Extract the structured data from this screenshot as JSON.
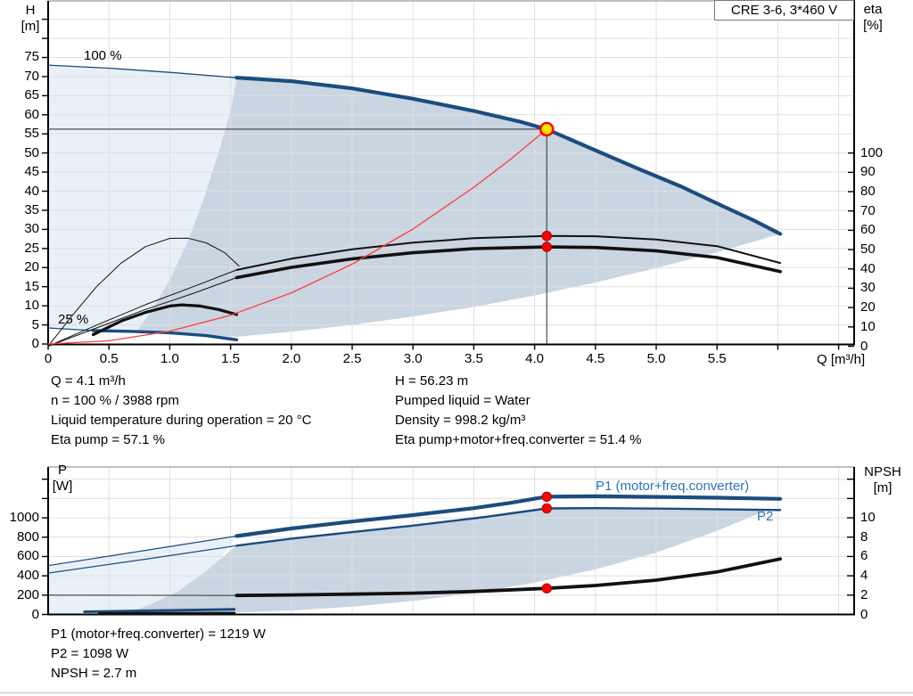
{
  "title_box_label": "CRE 3-6, 3*460 V",
  "colors": {
    "navy": "#1b4d7e",
    "black_curve": "#111111",
    "red_curve": "#ff3c3c",
    "red_dot": "#ff0000",
    "red_dot_edge": "#b00000",
    "yellow_fill": "#f7e400",
    "yellow_ring": "#ff0000",
    "fill_light": "#e9f0f8",
    "fill_dark": "#cad5e2",
    "grid": "#dfdfdf",
    "frame": "#9b9b9b",
    "axis": "#000000",
    "crosshair": "#3c3c3c",
    "blue_label": "#2e74b6"
  },
  "duty_point": {
    "q": 4.1,
    "h": 56.23,
    "eta_pump": 57.1,
    "eta_total": 51.4,
    "p1": 1219,
    "p2": 1098,
    "npsh": 2.7
  },
  "top_chart": {
    "h_axis": {
      "title_line1": "H",
      "title_line2": "[m]",
      "ticks": [
        0,
        5,
        10,
        15,
        20,
        25,
        30,
        35,
        40,
        45,
        50,
        55,
        60,
        65,
        70,
        75
      ],
      "unlabeled_ticks": [
        80,
        85
      ]
    },
    "eta_axis": {
      "title_line1": "eta",
      "title_line2": "[%]",
      "ticks": [
        0,
        10,
        20,
        30,
        40,
        50,
        60,
        70,
        80,
        90,
        100
      ]
    },
    "x_axis": {
      "tick_values": [
        0,
        0.5,
        1,
        1.5,
        2,
        2.5,
        3,
        3.5,
        4,
        4.5,
        5,
        5.5
      ],
      "tick_labels": [
        "0",
        "0.5",
        "1.0",
        "1.5",
        "2.0",
        "2.5",
        "3.0",
        "3.5",
        "4.0",
        "4.5",
        "5.0",
        "5.5"
      ],
      "unlabeled_ticks": [
        6.0,
        6.5
      ],
      "title": "Q [m³/h]"
    },
    "speed_label_max": "100 %",
    "speed_label_min": "25 %"
  },
  "bottom_chart": {
    "p_axis": {
      "title_line1": "P",
      "title_line2": "[W]",
      "ticks": [
        0,
        200,
        400,
        600,
        800,
        1000
      ],
      "unlabeled_ticks": [
        1200,
        1400
      ]
    },
    "npsh_axis": {
      "title_line1": "NPSH",
      "title_line2": "[m]",
      "ticks": [
        0,
        2,
        4,
        6,
        8,
        10
      ],
      "unlabeled_ticks": [
        12,
        14
      ]
    },
    "curve_label_p1": "P1 (motor+freq.converter)",
    "curve_label_p2": "P2"
  },
  "info_top": {
    "left": [
      "Q = 4.1 m³/h",
      "n = 100 % / 3988 rpm",
      "Liquid temperature during operation = 20 °C",
      "Eta pump = 57.1 %"
    ],
    "right": [
      "H = 56.23 m",
      "Pumped liquid = Water",
      "Density = 998.2 kg/m³",
      "Eta pump+motor+freq.converter = 51.4 %"
    ]
  },
  "info_bottom": {
    "lines": [
      "P1 (motor+freq.converter) = 1219 W",
      "P2 = 1098 W",
      "NPSH = 2.7 m"
    ]
  },
  "chart_data": {
    "type": "line",
    "title": "CRE 3-6, 3*460 V pump performance curves",
    "x_axis": {
      "label": "Q [m³/h]",
      "range": [
        0,
        6.63
      ],
      "grid_step": 0.5
    },
    "top_axes": {
      "H": {
        "label": "H [m]",
        "range": [
          0,
          90
        ]
      },
      "eta": {
        "label": "eta [%]",
        "range": [
          0,
          100
        ]
      }
    },
    "bottom_axes": {
      "P": {
        "label": "P [W]",
        "range": [
          0,
          1520
        ]
      },
      "NPSH": {
        "label": "NPSH [m]",
        "range": [
          0,
          15
        ]
      }
    },
    "regions": [
      {
        "name": "envelope-light-top",
        "chart": "top",
        "axis": "H",
        "color": "fill_light",
        "points": [
          [
            0,
            4.2
          ],
          [
            0,
            73
          ],
          [
            0.5,
            72.2
          ],
          [
            1.0,
            71.1
          ],
          [
            1.55,
            69.7
          ],
          [
            1.5,
            61
          ],
          [
            1.41,
            51
          ],
          [
            1.29,
            39
          ],
          [
            1.15,
            27
          ],
          [
            1.0,
            16.8
          ],
          [
            0.86,
            9.3
          ],
          [
            0.73,
            3.4
          ],
          [
            0.55,
            3.4
          ],
          [
            0.37,
            3.5
          ],
          [
            0,
            4.2
          ]
        ]
      },
      {
        "name": "envelope-dark-top",
        "chart": "top",
        "axis": "H",
        "color": "fill_dark",
        "points": [
          [
            1.55,
            69.7
          ],
          [
            2,
            68.8
          ],
          [
            2.5,
            66.9
          ],
          [
            3,
            64.2
          ],
          [
            3.5,
            61.0
          ],
          [
            3.88,
            58.2
          ],
          [
            4.1,
            56.23
          ],
          [
            4.5,
            50.7
          ],
          [
            4.85,
            45.9
          ],
          [
            5.2,
            41.3
          ],
          [
            5.56,
            35.9
          ],
          [
            5.8,
            32.4
          ],
          [
            6.02,
            28.8
          ],
          [
            5.5,
            24
          ],
          [
            5.0,
            19.9
          ],
          [
            4.5,
            16.1
          ],
          [
            4.0,
            12.7
          ],
          [
            3.5,
            9.7
          ],
          [
            3.0,
            7.2
          ],
          [
            2.5,
            5.0
          ],
          [
            2.0,
            3.2
          ],
          [
            1.55,
            1.9
          ],
          [
            1.3,
            2.2
          ],
          [
            1.0,
            2.95
          ],
          [
            0.73,
            3.35
          ],
          [
            0.86,
            9.3
          ],
          [
            1.0,
            16.8
          ],
          [
            1.15,
            27
          ],
          [
            1.29,
            39
          ],
          [
            1.41,
            51
          ],
          [
            1.5,
            61
          ]
        ]
      },
      {
        "name": "envelope-light-bottom",
        "chart": "bottom",
        "axis": "P",
        "color": "fill_light",
        "points": [
          [
            0,
            0
          ],
          [
            0,
            505
          ],
          [
            0.8,
            663
          ],
          [
            1.55,
            812
          ],
          [
            1.42,
            580
          ],
          [
            1.29,
            440
          ],
          [
            1.07,
            240
          ],
          [
            0.85,
            110
          ],
          [
            0.62,
            0
          ]
        ]
      },
      {
        "name": "envelope-dark-bottom",
        "chart": "bottom",
        "axis": "P",
        "color": "fill_dark",
        "points": [
          [
            1.55,
            712
          ],
          [
            2,
            785
          ],
          [
            2.5,
            852
          ],
          [
            3,
            920
          ],
          [
            3.6,
            1010
          ],
          [
            4.1,
            1098
          ],
          [
            4.5,
            1100
          ],
          [
            5,
            1096
          ],
          [
            5.5,
            1089
          ],
          [
            5.92,
            1084
          ],
          [
            5.5,
            865
          ],
          [
            5,
            640
          ],
          [
            4.5,
            467
          ],
          [
            4,
            328
          ],
          [
            3.5,
            220
          ],
          [
            3,
            139
          ],
          [
            2.5,
            80
          ],
          [
            2,
            41
          ],
          [
            1.55,
            19
          ],
          [
            1.2,
            9
          ],
          [
            0.9,
            4
          ],
          [
            0.62,
            0
          ],
          [
            0.85,
            110
          ],
          [
            1.07,
            240
          ],
          [
            1.29,
            440
          ],
          [
            1.42,
            580
          ]
        ]
      }
    ],
    "series": [
      {
        "name": "head-100pct-low-flow",
        "chart": "top",
        "axis": "H",
        "color": "navy",
        "width": 1.3,
        "points": [
          [
            0,
            73
          ],
          [
            0.5,
            72.2
          ],
          [
            1.0,
            71.1
          ],
          [
            1.55,
            69.7
          ]
        ]
      },
      {
        "name": "head-100pct",
        "chart": "top",
        "axis": "H",
        "color": "navy",
        "width": 4.2,
        "points": [
          [
            1.55,
            69.7
          ],
          [
            2,
            68.8
          ],
          [
            2.5,
            66.9
          ],
          [
            3,
            64.2
          ],
          [
            3.5,
            61.0
          ],
          [
            3.88,
            58.2
          ],
          [
            4.1,
            56.23
          ],
          [
            4.5,
            50.7
          ],
          [
            4.85,
            45.9
          ],
          [
            5.2,
            41.3
          ],
          [
            5.56,
            35.9
          ],
          [
            5.8,
            32.4
          ],
          [
            6.02,
            28.8
          ]
        ]
      },
      {
        "name": "head-25pct-low-flow",
        "chart": "top",
        "axis": "H",
        "color": "navy",
        "width": 1.2,
        "points": [
          [
            0,
            4.2
          ],
          [
            0.37,
            3.5
          ]
        ]
      },
      {
        "name": "head-25pct",
        "chart": "top",
        "axis": "H",
        "color": "navy",
        "width": 3.4,
        "points": [
          [
            0.37,
            3.5
          ],
          [
            0.7,
            3.3
          ],
          [
            1.0,
            2.95
          ],
          [
            1.3,
            2.2
          ],
          [
            1.55,
            1.1
          ]
        ]
      },
      {
        "name": "eta-pump-ext",
        "chart": "top",
        "axis": "eta",
        "color": "black_curve",
        "width": 1.0,
        "points": [
          [
            0,
            0
          ],
          [
            0.4,
            11
          ],
          [
            0.8,
            21.5
          ],
          [
            1.2,
            31
          ],
          [
            1.55,
            39.5
          ]
        ]
      },
      {
        "name": "eta-pump",
        "chart": "top",
        "axis": "eta",
        "color": "black_curve",
        "width": 2.0,
        "points": [
          [
            1.55,
            39.5
          ],
          [
            2,
            45.3
          ],
          [
            2.5,
            50.2
          ],
          [
            3,
            53.6
          ],
          [
            3.5,
            55.9
          ],
          [
            4.1,
            57.1
          ],
          [
            4.5,
            56.9
          ],
          [
            5,
            55.2
          ],
          [
            5.5,
            51.8
          ],
          [
            6.02,
            43.1
          ]
        ]
      },
      {
        "name": "eta-total-ext",
        "chart": "top",
        "axis": "eta",
        "color": "black_curve",
        "width": 1.0,
        "points": [
          [
            0,
            0
          ],
          [
            0.4,
            9.5
          ],
          [
            0.8,
            19
          ],
          [
            1.2,
            27.5
          ],
          [
            1.55,
            35.5
          ]
        ]
      },
      {
        "name": "eta-total",
        "chart": "top",
        "axis": "eta",
        "color": "black_curve",
        "width": 3.6,
        "points": [
          [
            1.55,
            35.5
          ],
          [
            2,
            40.8
          ],
          [
            2.5,
            45.2
          ],
          [
            3,
            48.4
          ],
          [
            3.5,
            50.5
          ],
          [
            4.1,
            51.4
          ],
          [
            4.5,
            51.1
          ],
          [
            5,
            49.4
          ],
          [
            5.5,
            45.9
          ],
          [
            6.02,
            38.6
          ]
        ]
      },
      {
        "name": "eta-pump-25pct",
        "chart": "top",
        "axis": "eta",
        "color": "black_curve",
        "width": 1.0,
        "points": [
          [
            0,
            0
          ],
          [
            0.2,
            16
          ],
          [
            0.4,
            31
          ],
          [
            0.6,
            43
          ],
          [
            0.8,
            51.5
          ],
          [
            1.0,
            55.8
          ],
          [
            1.15,
            55.9
          ],
          [
            1.3,
            53.5
          ],
          [
            1.45,
            48.5
          ],
          [
            1.57,
            41.5
          ]
        ]
      },
      {
        "name": "eta-total-25pct",
        "chart": "top",
        "axis": "eta",
        "color": "black_curve",
        "width": 3.2,
        "points": [
          [
            0.37,
            6
          ],
          [
            0.6,
            13
          ],
          [
            0.8,
            17.5
          ],
          [
            1.0,
            20.8
          ],
          [
            1.1,
            21.4
          ],
          [
            1.25,
            20.8
          ],
          [
            1.4,
            19
          ],
          [
            1.55,
            16.4
          ]
        ]
      },
      {
        "name": "system-curve",
        "chart": "top",
        "axis": "H",
        "color": "red_curve",
        "width": 1.3,
        "points": [
          [
            0,
            0
          ],
          [
            0.5,
            0.84
          ],
          [
            1,
            3.35
          ],
          [
            1.5,
            7.53
          ],
          [
            2,
            13.38
          ],
          [
            2.5,
            20.9
          ],
          [
            3,
            30.1
          ],
          [
            3.5,
            41.0
          ],
          [
            3.8,
            48.3
          ],
          [
            4.1,
            56.23
          ]
        ]
      },
      {
        "name": "p1-low-flow",
        "chart": "bottom",
        "axis": "P",
        "color": "navy",
        "width": 1.2,
        "points": [
          [
            0,
            505
          ],
          [
            0.8,
            663
          ],
          [
            1.55,
            812
          ]
        ]
      },
      {
        "name": "p1",
        "chart": "bottom",
        "axis": "P",
        "color": "navy",
        "width": 4.2,
        "points": [
          [
            1.55,
            812
          ],
          [
            2,
            890
          ],
          [
            2.5,
            962
          ],
          [
            3,
            1028
          ],
          [
            3.5,
            1100
          ],
          [
            3.8,
            1155
          ],
          [
            4.1,
            1219
          ],
          [
            4.5,
            1223
          ],
          [
            5,
            1217
          ],
          [
            5.5,
            1208
          ],
          [
            6.02,
            1196
          ]
        ]
      },
      {
        "name": "p2-low-flow",
        "chart": "bottom",
        "axis": "P",
        "color": "navy",
        "width": 1.2,
        "points": [
          [
            0,
            428
          ],
          [
            0.8,
            572
          ],
          [
            1.55,
            712
          ]
        ]
      },
      {
        "name": "p2",
        "chart": "bottom",
        "axis": "P",
        "color": "navy",
        "width": 2.4,
        "points": [
          [
            1.55,
            712
          ],
          [
            2,
            785
          ],
          [
            2.5,
            852
          ],
          [
            3,
            920
          ],
          [
            3.6,
            1010
          ],
          [
            4.1,
            1098
          ],
          [
            4.5,
            1100
          ],
          [
            5,
            1096
          ],
          [
            5.5,
            1089
          ],
          [
            6.02,
            1081
          ]
        ]
      },
      {
        "name": "p1-25pct",
        "chart": "bottom",
        "axis": "P",
        "color": "navy",
        "width": 3.0,
        "points": [
          [
            0.3,
            28
          ],
          [
            0.8,
            38
          ],
          [
            1.2,
            46
          ],
          [
            1.53,
            53
          ]
        ]
      },
      {
        "name": "npsh-25pct",
        "chart": "bottom",
        "axis": "NPSH",
        "color": "black_curve",
        "width": 3.0,
        "points": [
          [
            0.42,
            0.1
          ],
          [
            1.0,
            0.12
          ],
          [
            1.53,
            0.13
          ]
        ]
      },
      {
        "name": "npsh-low-flow",
        "chart": "bottom",
        "axis": "NPSH",
        "color": "crosshair",
        "width": 1.1,
        "points": [
          [
            0,
            2.0
          ],
          [
            0.8,
            1.98
          ],
          [
            1.55,
            1.96
          ]
        ]
      },
      {
        "name": "npsh",
        "chart": "bottom",
        "axis": "NPSH",
        "color": "black_curve",
        "width": 3.8,
        "points": [
          [
            1.55,
            1.96
          ],
          [
            2,
            2.02
          ],
          [
            2.5,
            2.1
          ],
          [
            3,
            2.2
          ],
          [
            3.5,
            2.38
          ],
          [
            4.1,
            2.7
          ],
          [
            4.5,
            3.0
          ],
          [
            5,
            3.55
          ],
          [
            5.5,
            4.4
          ],
          [
            6.02,
            5.75
          ]
        ]
      }
    ]
  }
}
